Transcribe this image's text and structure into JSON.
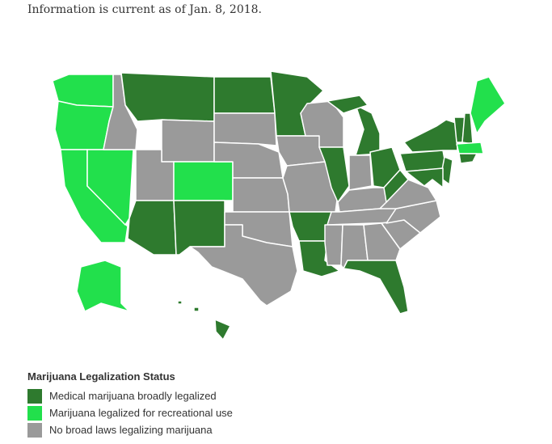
{
  "note": "Information is current as of Jan. 8, 2018.",
  "legend": {
    "title": "Marijuana Legalization Status",
    "items": [
      {
        "label": "Medical marijuana broadly legalized",
        "color": "#2e7a2e"
      },
      {
        "label": "Marijuana legalized for recreational use",
        "color": "#22e04c"
      },
      {
        "label": "No broad laws legalizing marijuana",
        "color": "#9a9a9a"
      }
    ]
  }
}
